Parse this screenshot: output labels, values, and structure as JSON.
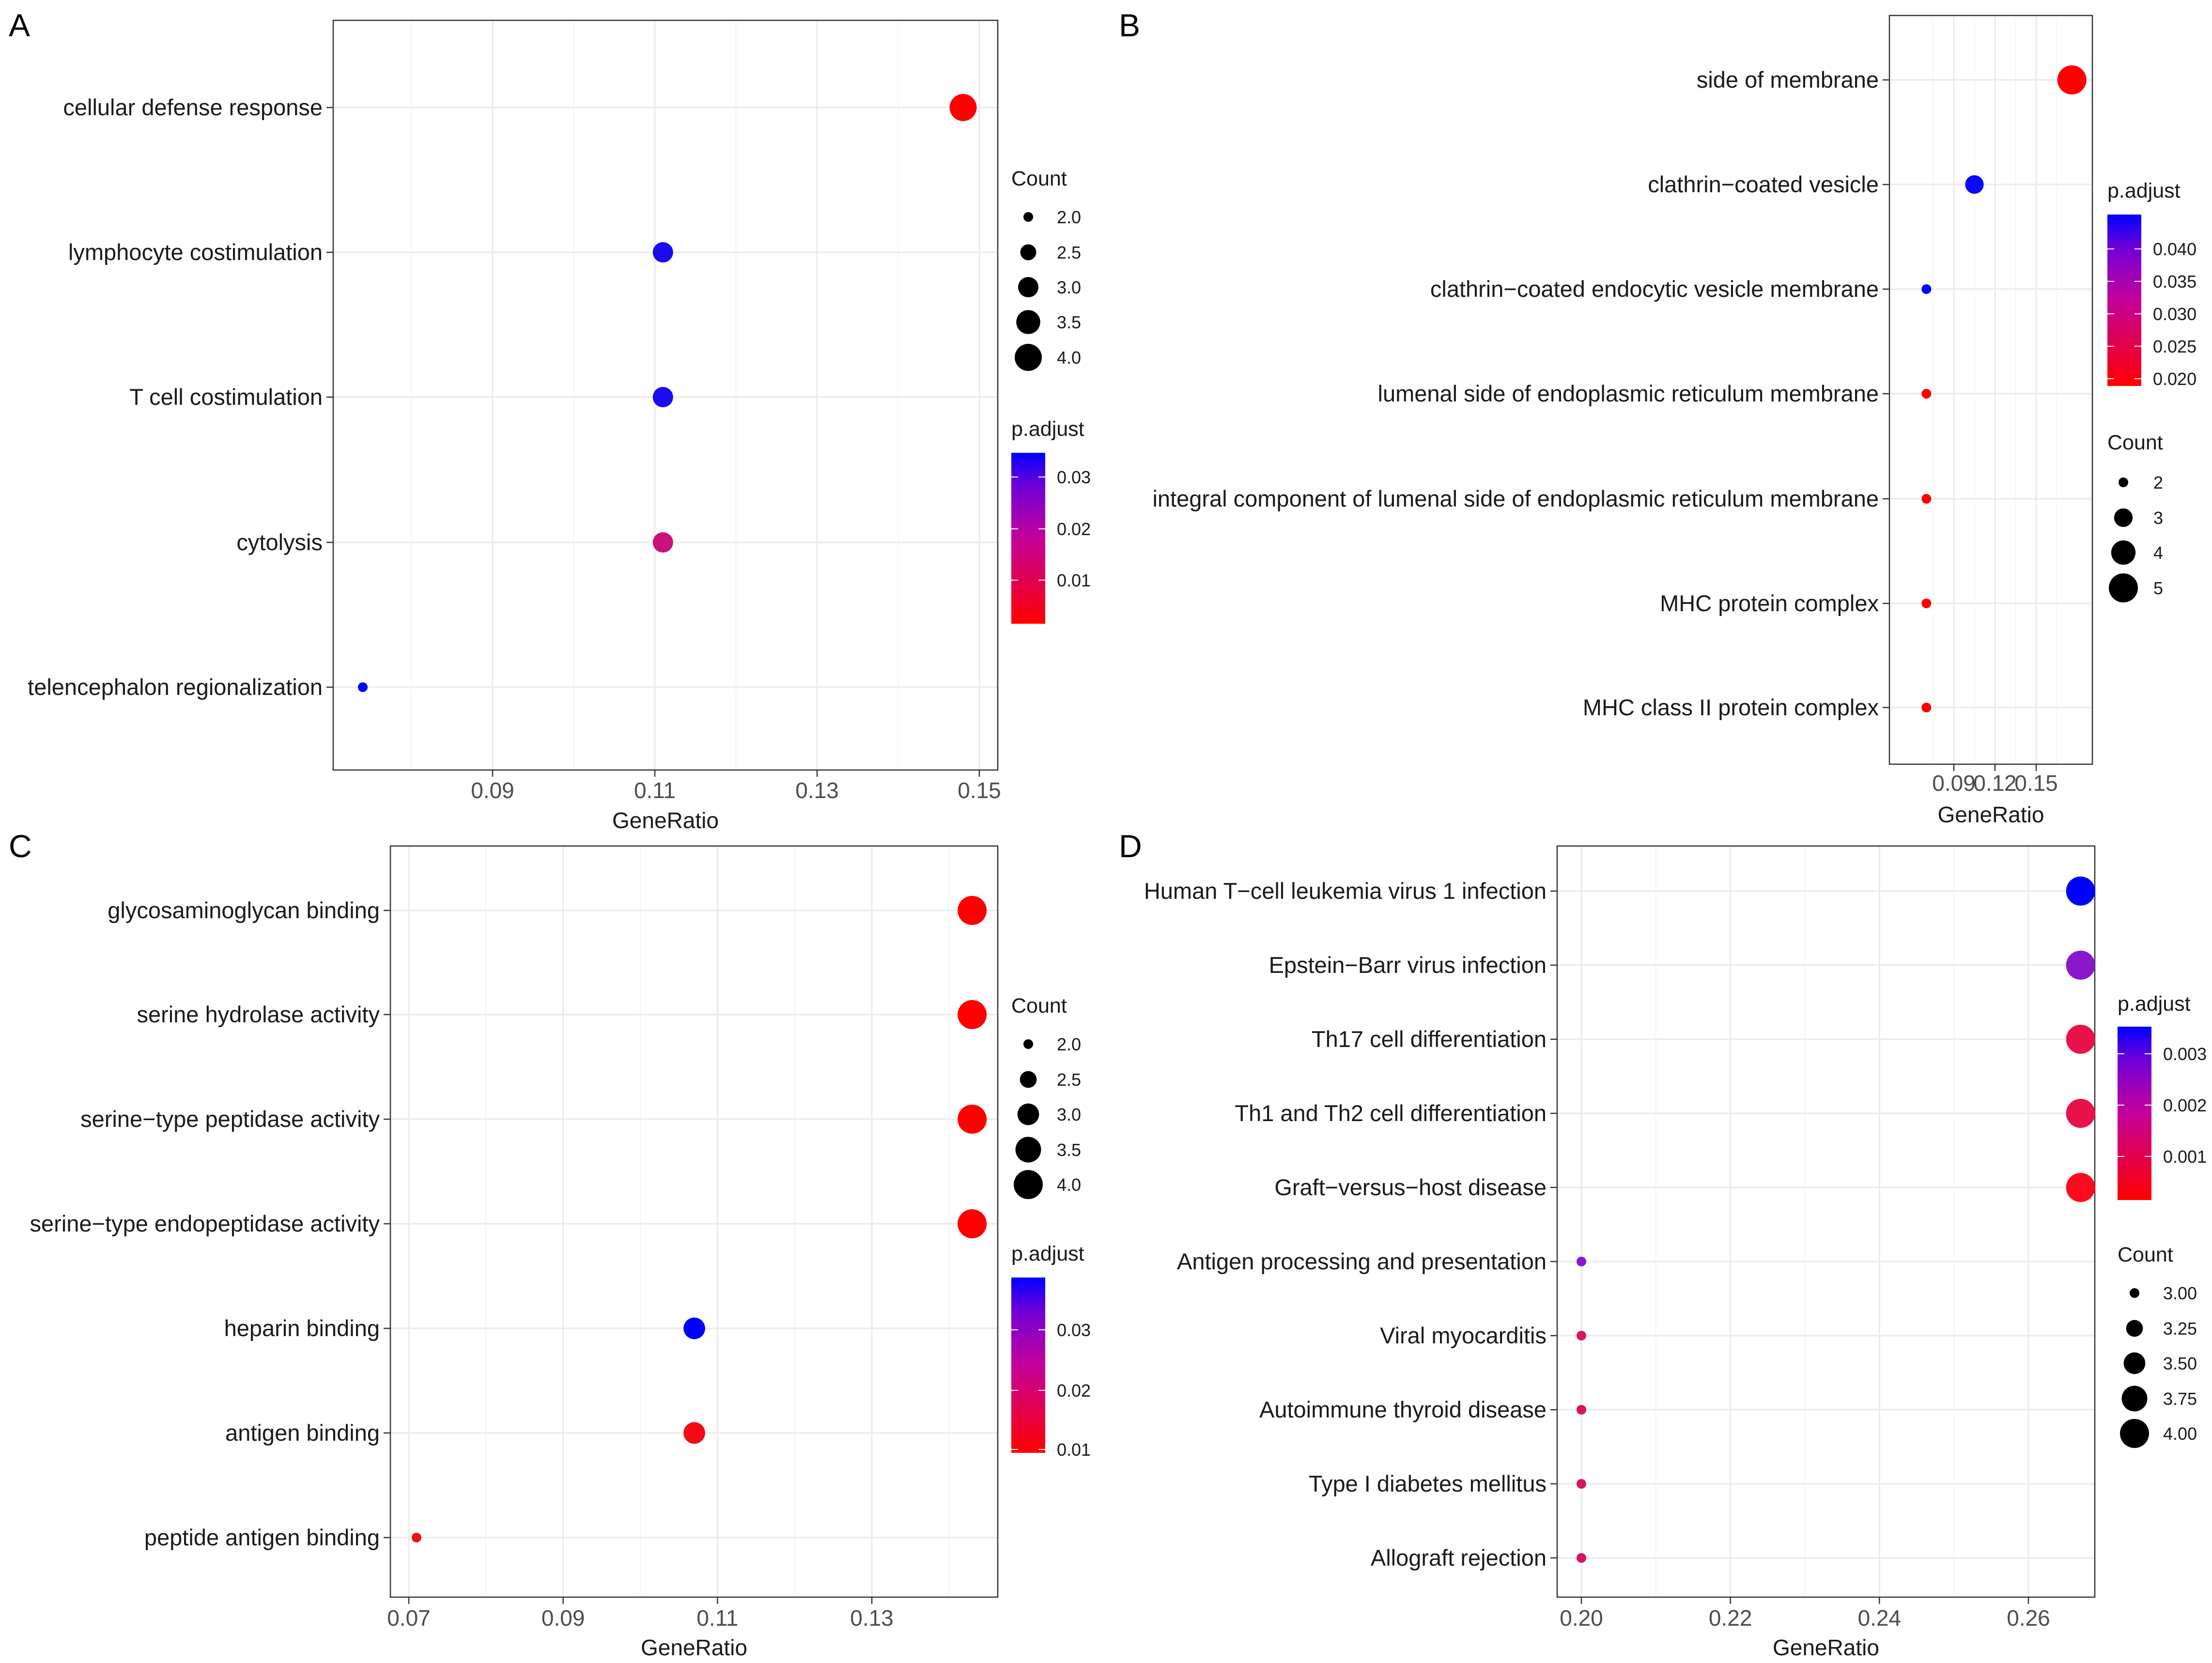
{
  "chart_data": [
    {
      "panel": "A",
      "type": "scatter",
      "xlabel": "GeneRatio",
      "xticks": [
        "0.09",
        "0.11",
        "0.13",
        "0.15"
      ],
      "categories": [
        "cellular defense response",
        "lymphocyte costimulation",
        "T cell costimulation",
        "cytolysis",
        "telencephalon regionalization"
      ],
      "points": [
        {
          "term": "cellular defense response",
          "gene_ratio": 0.148,
          "count": 4,
          "p_adjust": 0.0005,
          "color": "#ff0000"
        },
        {
          "term": "lymphocyte costimulation",
          "gene_ratio": 0.111,
          "count": 3,
          "p_adjust": 0.034,
          "color": "#1a0bf0"
        },
        {
          "term": "T cell costimulation",
          "gene_ratio": 0.111,
          "count": 3,
          "p_adjust": 0.034,
          "color": "#1a0bf0"
        },
        {
          "term": "cytolysis",
          "gene_ratio": 0.111,
          "count": 3,
          "p_adjust": 0.014,
          "color": "#c8137a"
        },
        {
          "term": "telencephalon regionalization",
          "gene_ratio": 0.074,
          "count": 2,
          "p_adjust": 0.036,
          "color": "#0000ff"
        }
      ],
      "count_legend": {
        "title": "Count",
        "labels": [
          "2.0",
          "2.5",
          "3.0",
          "3.5",
          "4.0"
        ]
      },
      "color_legend": {
        "title": "p.adjust",
        "labels": [
          "0.03",
          "0.02",
          "0.01"
        ]
      }
    },
    {
      "panel": "B",
      "type": "scatter",
      "xlabel": "GeneRatio",
      "xticks": [
        "0.09",
        "0.12",
        "0.15"
      ],
      "categories": [
        "side of membrane",
        "clathrin−coated vesicle",
        "clathrin−coated endocytic vesicle membrane",
        "lumenal side of endoplasmic reticulum membrane",
        "integral component of lumenal side of endoplasmic reticulum membrane",
        "MHC protein complex",
        "MHC class II protein complex"
      ],
      "points": [
        {
          "term": "side of membrane",
          "gene_ratio": 0.176,
          "count": 5,
          "p_adjust": 0.0185,
          "color": "#ff0000"
        },
        {
          "term": "clathrin−coated vesicle",
          "gene_ratio": 0.105,
          "count": 3,
          "p_adjust": 0.044,
          "color": "#0a0af8"
        },
        {
          "term": "clathrin−coated endocytic vesicle membrane",
          "gene_ratio": 0.07,
          "count": 2,
          "p_adjust": 0.045,
          "color": "#0000ff"
        },
        {
          "term": "lumenal side of endoplasmic reticulum membrane",
          "gene_ratio": 0.07,
          "count": 2,
          "p_adjust": 0.0185,
          "color": "#ff0000"
        },
        {
          "term": "integral component of lumenal side of endoplasmic reticulum membrane",
          "gene_ratio": 0.07,
          "count": 2,
          "p_adjust": 0.0185,
          "color": "#ff0000"
        },
        {
          "term": "MHC protein complex",
          "gene_ratio": 0.07,
          "count": 2,
          "p_adjust": 0.0185,
          "color": "#ff0000"
        },
        {
          "term": "MHC class II protein complex",
          "gene_ratio": 0.07,
          "count": 2,
          "p_adjust": 0.0185,
          "color": "#ff0000"
        }
      ],
      "count_legend": {
        "title": "Count",
        "labels": [
          "2",
          "3",
          "4",
          "5"
        ]
      },
      "color_legend": {
        "title": "p.adjust",
        "labels": [
          "0.040",
          "0.035",
          "0.030",
          "0.025",
          "0.020"
        ]
      }
    },
    {
      "panel": "C",
      "type": "scatter",
      "xlabel": "GeneRatio",
      "xticks": [
        "0.07",
        "0.09",
        "0.11",
        "0.13"
      ],
      "categories": [
        "glycosaminoglycan binding",
        "serine hydrolase activity",
        "serine−type peptidase activity",
        "serine−type endopeptidase activity",
        "heparin binding",
        "antigen binding",
        "peptide antigen binding"
      ],
      "points": [
        {
          "term": "glycosaminoglycan binding",
          "gene_ratio": 0.143,
          "count": 4,
          "p_adjust": 0.0072,
          "color": "#ff0000"
        },
        {
          "term": "serine hydrolase activity",
          "gene_ratio": 0.143,
          "count": 4,
          "p_adjust": 0.0072,
          "color": "#ff0000"
        },
        {
          "term": "serine−type peptidase activity",
          "gene_ratio": 0.143,
          "count": 4,
          "p_adjust": 0.0072,
          "color": "#ff0000"
        },
        {
          "term": "serine−type endopeptidase activity",
          "gene_ratio": 0.143,
          "count": 4,
          "p_adjust": 0.0072,
          "color": "#ff0000"
        },
        {
          "term": "heparin binding",
          "gene_ratio": 0.107,
          "count": 3,
          "p_adjust": 0.036,
          "color": "#0000ff"
        },
        {
          "term": "antigen binding",
          "gene_ratio": 0.107,
          "count": 3,
          "p_adjust": 0.0085,
          "color": "#f20a14"
        },
        {
          "term": "peptide antigen binding",
          "gene_ratio": 0.071,
          "count": 2,
          "p_adjust": 0.011,
          "color": "#e8121f"
        }
      ],
      "count_legend": {
        "title": "Count",
        "labels": [
          "2.0",
          "2.5",
          "3.0",
          "3.5",
          "4.0"
        ]
      },
      "color_legend": {
        "title": "p.adjust",
        "labels": [
          "0.03",
          "0.02",
          "0.01"
        ]
      }
    },
    {
      "panel": "D",
      "type": "scatter",
      "xlabel": "GeneRatio",
      "xticks": [
        "0.20",
        "0.22",
        "0.24",
        "0.26"
      ],
      "categories": [
        "Human T−cell leukemia virus 1 infection",
        "Epstein−Barr virus infection",
        "Th17 cell differentiation",
        "Th1 and Th2 cell differentiation",
        "Graft−versus−host disease",
        "Antigen processing and presentation",
        "Viral myocarditis",
        "Autoimmune thyroid disease",
        "Type I diabetes mellitus",
        "Allograft rejection"
      ],
      "points": [
        {
          "term": "Human T−cell leukemia virus 1 infection",
          "gene_ratio": 0.267,
          "count": 4,
          "p_adjust": 0.0034,
          "color": "#0000ff"
        },
        {
          "term": "Epstein−Barr virus infection",
          "gene_ratio": 0.267,
          "count": 4,
          "p_adjust": 0.0024,
          "color": "#8b18c8"
        },
        {
          "term": "Th17 cell differentiation",
          "gene_ratio": 0.267,
          "count": 4,
          "p_adjust": 0.0009,
          "color": "#e8124a"
        },
        {
          "term": "Th1 and Th2 cell differentiation",
          "gene_ratio": 0.267,
          "count": 4,
          "p_adjust": 0.0009,
          "color": "#e8124a"
        },
        {
          "term": "Graft−versus−host disease",
          "gene_ratio": 0.267,
          "count": 4,
          "p_adjust": 0.0002,
          "color": "#ff0a1e"
        },
        {
          "term": "Antigen processing and presentation",
          "gene_ratio": 0.2,
          "count": 3,
          "p_adjust": 0.0024,
          "color": "#8b18c8"
        },
        {
          "term": "Viral myocarditis",
          "gene_ratio": 0.2,
          "count": 3,
          "p_adjust": 0.0011,
          "color": "#d81460"
        },
        {
          "term": "Autoimmune thyroid disease",
          "gene_ratio": 0.2,
          "count": 3,
          "p_adjust": 0.0011,
          "color": "#d81460"
        },
        {
          "term": "Type I diabetes mellitus",
          "gene_ratio": 0.2,
          "count": 3,
          "p_adjust": 0.0011,
          "color": "#d81460"
        },
        {
          "term": "Allograft rejection",
          "gene_ratio": 0.2,
          "count": 3,
          "p_adjust": 0.0011,
          "color": "#d81460"
        }
      ],
      "count_legend": {
        "title": "Count",
        "labels": [
          "3.00",
          "3.25",
          "3.50",
          "3.75",
          "4.00"
        ]
      },
      "color_legend": {
        "title": "p.adjust",
        "labels": [
          "0.003",
          "0.002",
          "0.001"
        ]
      }
    }
  ],
  "colors": {
    "high_p": "#0000ff",
    "low_p": "#ff0000",
    "mid_p": "#8a00d4"
  }
}
